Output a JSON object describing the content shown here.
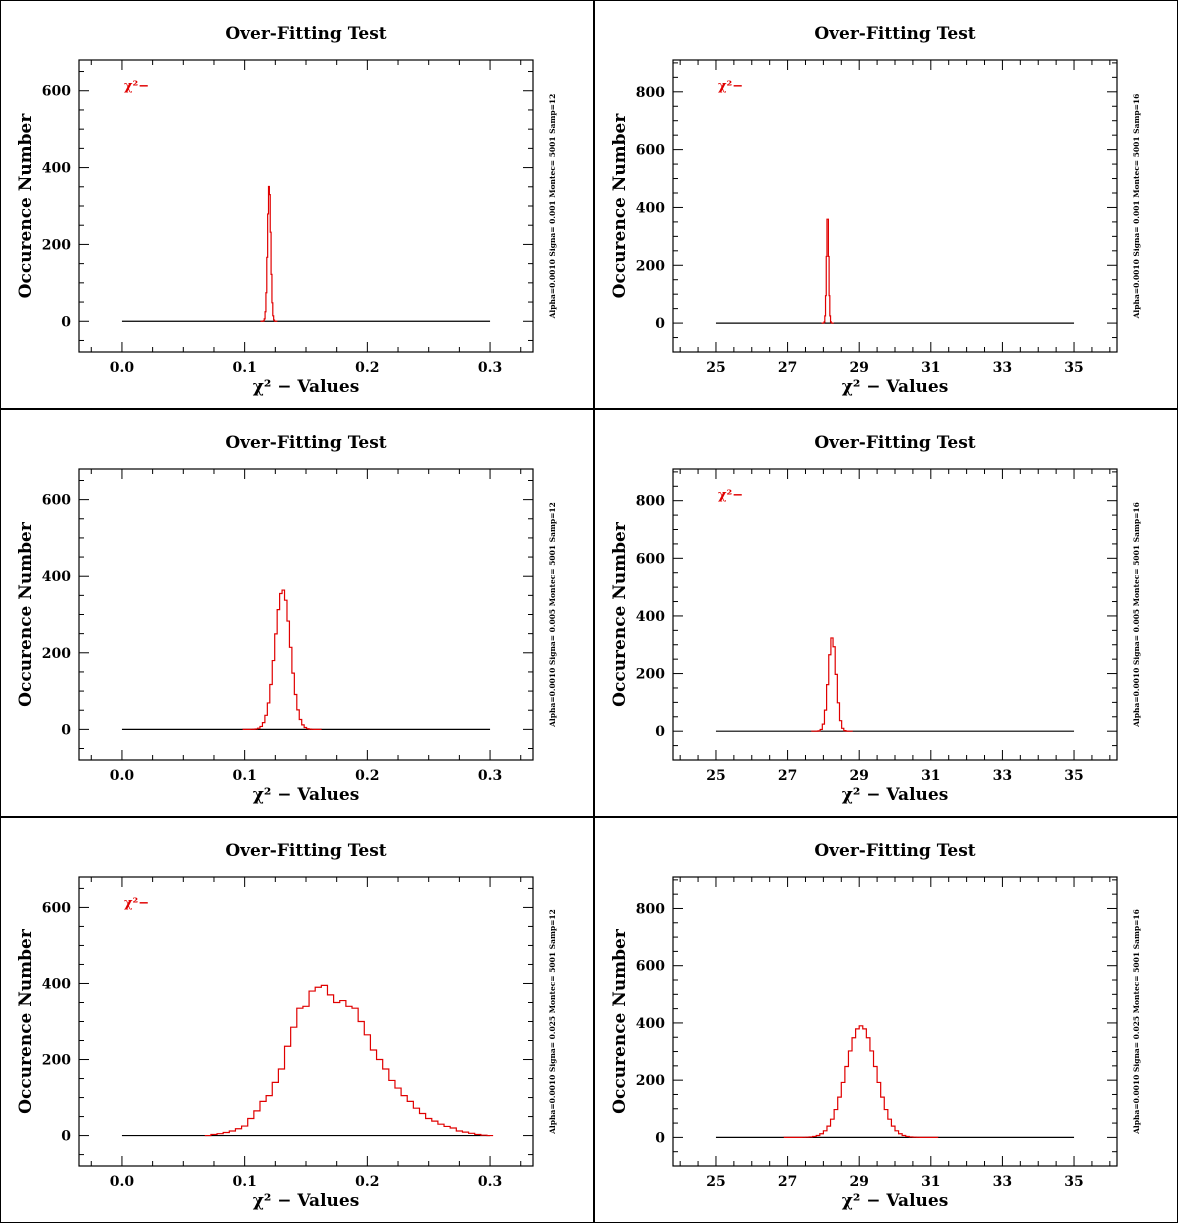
{
  "chart_data": [
    {
      "type": "line",
      "title": "Over-Fitting Test",
      "xlabel": "χ² − Values",
      "ylabel": "Occurence Number",
      "side_label": "Alpha=0.0010 Signa= 0.001 Montec= 5001 Samp=12",
      "legend": "χ²−",
      "xlim": [
        -0.035,
        0.335
      ],
      "ylim": [
        -80,
        680
      ],
      "xticks": [
        0.0,
        0.1,
        0.2,
        0.3
      ],
      "xtick_labels": [
        "0.0",
        "0.1",
        "0.2",
        "0.3"
      ],
      "yticks": [
        0,
        200,
        400,
        600
      ],
      "baseline": [
        0.0,
        0.3
      ],
      "peak": {
        "center": 0.12,
        "sigma": 0.0013,
        "height": 355,
        "step": 0.0007
      }
    },
    {
      "type": "line",
      "title": "Over-Fitting Test",
      "xlabel": "χ² − Values",
      "ylabel": "Occurence Number",
      "side_label": "Alpha=0.0010 Signa= 0.001 Montec= 5001 Samp=16",
      "legend": "χ²−",
      "xlim": [
        23.8,
        36.2
      ],
      "ylim": [
        -100,
        910
      ],
      "xticks": [
        25,
        27,
        29,
        31,
        33,
        35
      ],
      "xtick_labels": [
        "25",
        "27",
        "29",
        "31",
        "33",
        "35"
      ],
      "yticks": [
        0,
        200,
        400,
        600,
        800
      ],
      "baseline": [
        25,
        35
      ],
      "peak": {
        "center": 28.12,
        "sigma": 0.03,
        "height": 380,
        "step": 0.02
      }
    },
    {
      "type": "line",
      "title": "Over-Fitting Test",
      "xlabel": "χ² − Values",
      "ylabel": "Occurence Number",
      "side_label": "Alpha=0.0010 Signa= 0.005 Montec= 5001 Samp=12",
      "legend": "",
      "xlim": [
        -0.035,
        0.335
      ],
      "ylim": [
        -80,
        680
      ],
      "xticks": [
        0.0,
        0.1,
        0.2,
        0.3
      ],
      "xtick_labels": [
        "0.0",
        "0.1",
        "0.2",
        "0.3"
      ],
      "yticks": [
        0,
        200,
        400,
        600
      ],
      "baseline": [
        0.0,
        0.3
      ],
      "peak": {
        "center": 0.131,
        "sigma": 0.0063,
        "height": 365,
        "step": 0.002
      }
    },
    {
      "type": "line",
      "title": "Over-Fitting Test",
      "xlabel": "χ² − Values",
      "ylabel": "Occurence Number",
      "side_label": "Alpha=0.0010 Signa= 0.005 Montec= 5001 Samp=16",
      "legend": "χ²−",
      "xlim": [
        23.8,
        36.2
      ],
      "ylim": [
        -100,
        910
      ],
      "xticks": [
        25,
        27,
        29,
        31,
        33,
        35
      ],
      "xtick_labels": [
        "25",
        "27",
        "29",
        "31",
        "33",
        "35"
      ],
      "yticks": [
        0,
        200,
        400,
        600,
        800
      ],
      "baseline": [
        25,
        35
      ],
      "peak": {
        "center": 28.25,
        "sigma": 0.11,
        "height": 325,
        "step": 0.06
      }
    },
    {
      "type": "line",
      "title": "Over-Fitting Test",
      "xlabel": "χ² − Values",
      "ylabel": "Occurence Number",
      "side_label": "Alpha=0.0010 Signa= 0.025 Montec= 5001 Samp=12",
      "legend": "χ²−",
      "xlim": [
        -0.035,
        0.335
      ],
      "ylim": [
        -80,
        680
      ],
      "xticks": [
        0.0,
        0.1,
        0.2,
        0.3
      ],
      "xtick_labels": [
        "0.0",
        "0.1",
        "0.2",
        "0.3"
      ],
      "yticks": [
        0,
        200,
        400,
        600
      ],
      "baseline": [
        0.0,
        0.3
      ],
      "histogram": {
        "x": [
          0.07,
          0.075,
          0.08,
          0.085,
          0.09,
          0.095,
          0.1,
          0.105,
          0.11,
          0.115,
          0.12,
          0.125,
          0.13,
          0.135,
          0.14,
          0.145,
          0.15,
          0.155,
          0.16,
          0.165,
          0.17,
          0.175,
          0.18,
          0.185,
          0.19,
          0.195,
          0.2,
          0.205,
          0.21,
          0.215,
          0.22,
          0.225,
          0.23,
          0.235,
          0.24,
          0.245,
          0.25,
          0.255,
          0.26,
          0.265,
          0.27,
          0.275,
          0.28,
          0.285,
          0.29,
          0.295,
          0.3
        ],
        "counts": [
          0,
          3,
          5,
          8,
          12,
          18,
          25,
          45,
          65,
          90,
          105,
          140,
          175,
          235,
          285,
          335,
          340,
          380,
          390,
          395,
          370,
          350,
          355,
          340,
          335,
          300,
          265,
          225,
          200,
          175,
          145,
          125,
          105,
          90,
          72,
          58,
          45,
          38,
          30,
          24,
          20,
          12,
          9,
          6,
          3,
          1,
          0
        ]
      }
    },
    {
      "type": "line",
      "title": "Over-Fitting Test",
      "xlabel": "χ² − Values",
      "ylabel": "Occurence Number",
      "side_label": "Alpha=0.0010 Signa= 0.025 Montec= 5001 Samp=16",
      "legend": "",
      "xlim": [
        23.8,
        36.2
      ],
      "ylim": [
        -100,
        910
      ],
      "xticks": [
        25,
        27,
        29,
        31,
        33,
        35
      ],
      "xtick_labels": [
        "25",
        "27",
        "29",
        "31",
        "33",
        "35"
      ],
      "yticks": [
        0,
        200,
        400,
        600,
        800
      ],
      "baseline": [
        25,
        35
      ],
      "peak": {
        "center": 29.05,
        "sigma": 0.42,
        "height": 390,
        "step": 0.1
      }
    }
  ]
}
